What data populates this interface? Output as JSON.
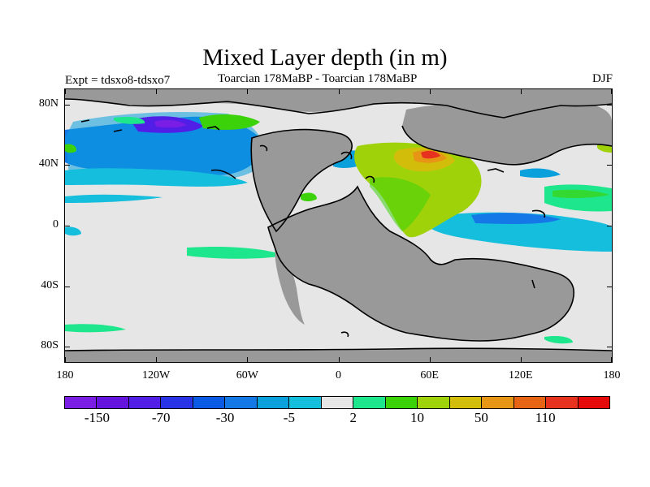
{
  "figure": {
    "title": "Mixed Layer depth (in m)",
    "subtitle_left": "Expt = tdsxo8-tdsxo7",
    "subtitle_center": "Toarcian 178MaBP - Toarcian 178MaBP",
    "subtitle_right": "DJF"
  },
  "map": {
    "projection": "cylindrical equidistant",
    "lon_range": [
      -180,
      180
    ],
    "lat_range": [
      -90,
      90
    ],
    "lat_ticks": [
      {
        "value": 80,
        "label": "80N"
      },
      {
        "value": 40,
        "label": "40N"
      },
      {
        "value": 0,
        "label": "0"
      },
      {
        "value": -40,
        "label": "40S"
      },
      {
        "value": -80,
        "label": "80S"
      }
    ],
    "lon_ticks": [
      {
        "value": -180,
        "label": "180"
      },
      {
        "value": -120,
        "label": "120W"
      },
      {
        "value": -60,
        "label": "60W"
      },
      {
        "value": 0,
        "label": "0"
      },
      {
        "value": 60,
        "label": "60E"
      },
      {
        "value": 120,
        "label": "120E"
      },
      {
        "value": 180,
        "label": "180"
      }
    ],
    "colors": {
      "land": "#999999",
      "ocean_no_change": "#e6e6e6",
      "coastline": "#000000"
    }
  },
  "colorbar": {
    "colors": [
      "#7a1ee6",
      "#6414dc",
      "#501ee6",
      "#2832e6",
      "#0a5ae6",
      "#1478e6",
      "#0aa0dc",
      "#14bedc",
      "#e6e6e6",
      "#1ee68c",
      "#3cd20a",
      "#a0d20a",
      "#d2be0a",
      "#e69614",
      "#e66414",
      "#e6321e",
      "#e60a0a"
    ],
    "labels": [
      {
        "text": "-150",
        "index": 1
      },
      {
        "text": "-70",
        "index": 3
      },
      {
        "text": "-30",
        "index": 5
      },
      {
        "text": "-5",
        "index": 7
      },
      {
        "text": "2",
        "index": 9
      },
      {
        "text": "10",
        "index": 11
      },
      {
        "text": "50",
        "index": 13
      },
      {
        "text": "110",
        "index": 15
      }
    ]
  }
}
